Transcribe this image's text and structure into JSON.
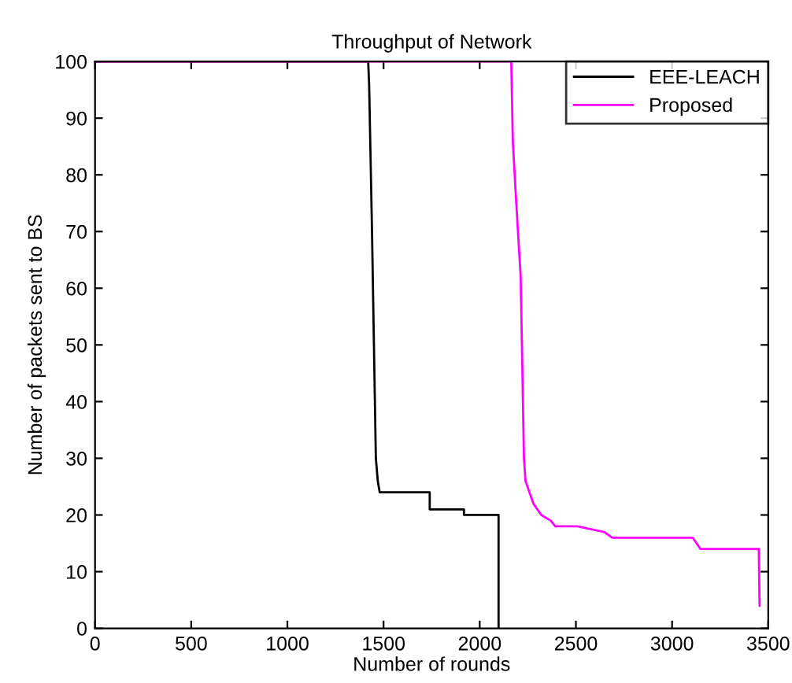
{
  "chart_data": {
    "type": "line",
    "title": "Throughput of Network",
    "xlabel": "Number of rounds",
    "ylabel": "Number of packets sent to BS",
    "series": [
      {
        "name": "EEE-LEACH",
        "color": "#000000",
        "x": [
          0,
          1420,
          1425,
          1440,
          1450,
          1460,
          1470,
          1480,
          1740,
          1740,
          1918,
          1918,
          2098,
          2098
        ],
        "values": [
          100,
          100,
          96,
          70,
          50,
          30,
          26,
          24,
          24,
          21,
          21,
          20,
          20,
          0
        ]
      },
      {
        "name": "Proposed",
        "color": "#ff00ff",
        "x": [
          0,
          2164,
          2172,
          2190,
          2213,
          2230,
          2238,
          2279,
          2320,
          2369,
          2393,
          2508,
          2648,
          2689,
          3107,
          3148,
          3451,
          3455
        ],
        "values": [
          100,
          100,
          86,
          75,
          62,
          30,
          26,
          22,
          20,
          19,
          18,
          18,
          17,
          16,
          16,
          14,
          14,
          4
        ]
      }
    ],
    "xlim": [
      0,
      3500
    ],
    "xticks": [
      0,
      500,
      1000,
      1500,
      2000,
      2500,
      3000,
      3500
    ],
    "ylim": [
      0,
      100
    ],
    "yticks": [
      0,
      10,
      20,
      30,
      40,
      50,
      60,
      70,
      80,
      90,
      100
    ],
    "legend": "top right",
    "grid": false
  }
}
